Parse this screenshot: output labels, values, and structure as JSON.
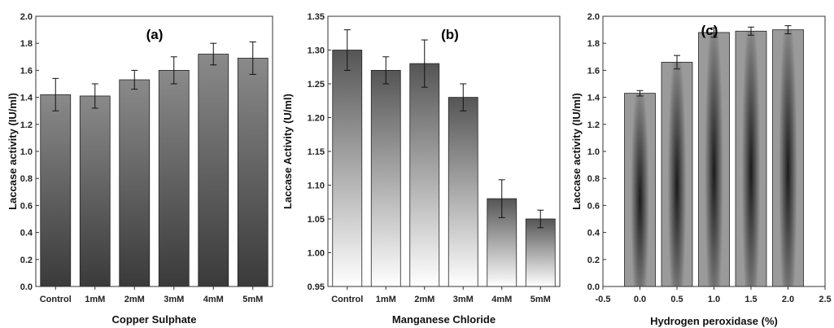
{
  "chart_data": [
    {
      "type": "bar",
      "title": "(a)",
      "xlabel": "Copper Sulphate",
      "ylabel": "Laccase activity (IU/ml)",
      "categories": [
        "Control",
        "1mM",
        "2mM",
        "3mM",
        "4mM",
        "5mM"
      ],
      "values": [
        1.42,
        1.41,
        1.53,
        1.6,
        1.72,
        1.69
      ],
      "errors": [
        0.12,
        0.09,
        0.07,
        0.1,
        0.08,
        0.12
      ],
      "ylim": [
        0.0,
        2.0
      ],
      "yticks": [
        "0.0",
        "0.2",
        "0.4",
        "0.6",
        "0.8",
        "1.0",
        "1.2",
        "1.4",
        "1.6",
        "1.8",
        "2.0"
      ],
      "bar_color_top": "#8a8a8a",
      "bar_color_bottom": "#3a3a3a"
    },
    {
      "type": "bar",
      "title": "(b)",
      "xlabel": "Manganese Chloride",
      "ylabel": "Laccase Activity (U/ml)",
      "categories": [
        "Control",
        "1mM",
        "2mM",
        "3mM",
        "4mM",
        "5mM"
      ],
      "values": [
        1.3,
        1.27,
        1.28,
        1.23,
        1.08,
        1.05
      ],
      "errors": [
        0.03,
        0.02,
        0.035,
        0.02,
        0.028,
        0.013
      ],
      "ylim": [
        0.95,
        1.35
      ],
      "yticks": [
        "0.95",
        "1.00",
        "1.05",
        "1.10",
        "1.15",
        "1.20",
        "1.25",
        "1.30",
        "1.35"
      ],
      "bar_color_top": "#555555",
      "bar_color_bottom": "#ffffff"
    },
    {
      "type": "bar",
      "title": "(c)",
      "xlabel": "Hydrogen peroxidase (%)",
      "ylabel": "Laccase activity (IU/ml)",
      "x": [
        0.0,
        0.5,
        1.0,
        1.5,
        2.0
      ],
      "values": [
        1.43,
        1.66,
        1.88,
        1.89,
        1.9
      ],
      "errors": [
        0.02,
        0.05,
        0.035,
        0.03,
        0.03
      ],
      "xlim": [
        -0.5,
        2.5
      ],
      "xticks": [
        "-0.5",
        "0.0",
        "0.5",
        "1.0",
        "1.5",
        "2.0",
        "2.5"
      ],
      "ylim": [
        0.0,
        2.0
      ],
      "yticks": [
        "0.0",
        "0.2",
        "0.4",
        "0.6",
        "0.8",
        "1.0",
        "1.2",
        "1.4",
        "1.6",
        "1.8",
        "2.0"
      ],
      "bar_color_edge": "#9a9a9a",
      "bar_color_center": "#1a1a1a"
    }
  ]
}
